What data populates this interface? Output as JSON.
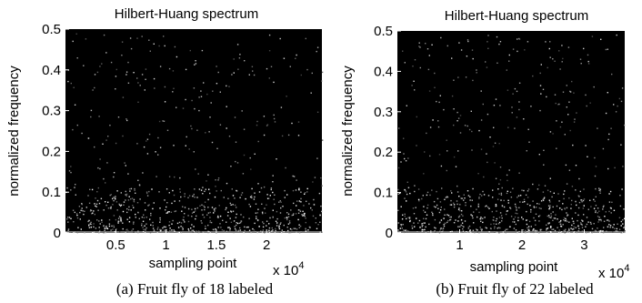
{
  "chart_data": [
    {
      "type": "heatmap",
      "title": "Hilbert-Huang spectrum",
      "xlabel": "sampling point",
      "ylabel": "normalized frequency",
      "x_multiplier": "x 10",
      "x_multiplier_exp": "4",
      "xlim": [
        0,
        2.55
      ],
      "ylim": [
        0,
        0.5
      ],
      "xticks": [
        0.5,
        1,
        1.5,
        2
      ],
      "xtick_labels": [
        "0.5",
        "1",
        "1.5",
        "2"
      ],
      "yticks": [
        0,
        0.1,
        0.2,
        0.3,
        0.4,
        0.5
      ],
      "ytick_labels": [
        "0",
        "0.1",
        "0.2",
        "0.3",
        "0.4",
        "0.5"
      ],
      "background_color": "#000000",
      "point_color": "#ffffff",
      "caption": "(a) Fruit fly of 18 labeled"
    },
    {
      "type": "heatmap",
      "title": "Hilbert-Huang spectrum",
      "xlabel": "sampling point",
      "ylabel": "normalized frequency",
      "x_multiplier": "x 10",
      "x_multiplier_exp": "4",
      "xlim": [
        0,
        3.65
      ],
      "ylim": [
        0,
        0.5
      ],
      "xticks": [
        1,
        2,
        3
      ],
      "xtick_labels": [
        "1",
        "2",
        "3"
      ],
      "yticks": [
        0,
        0.1,
        0.2,
        0.3,
        0.4,
        0.5
      ],
      "ytick_labels": [
        "0",
        "0.1",
        "0.2",
        "0.3",
        "0.4",
        "0.5"
      ],
      "background_color": "#000000",
      "point_color": "#ffffff",
      "caption": "(b) Fruit fly of 22 labeled"
    }
  ]
}
